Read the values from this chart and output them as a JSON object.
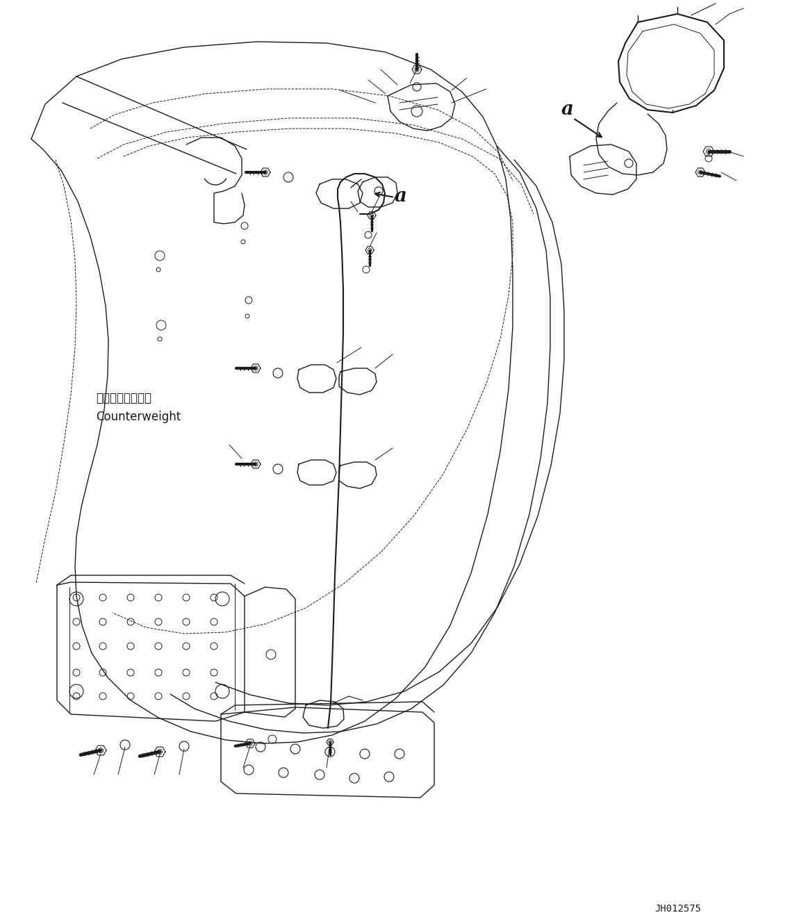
{
  "bg_color": "#ffffff",
  "line_color": "#1a1a1a",
  "text_color": "#1a1a1a",
  "diagram_id": "JH012575",
  "label_a": "a",
  "label_cw_jp": "カウンタウェイト",
  "label_cw_en": "Counterweight",
  "figsize": [
    11.63,
    13.27
  ],
  "dpi": 100
}
